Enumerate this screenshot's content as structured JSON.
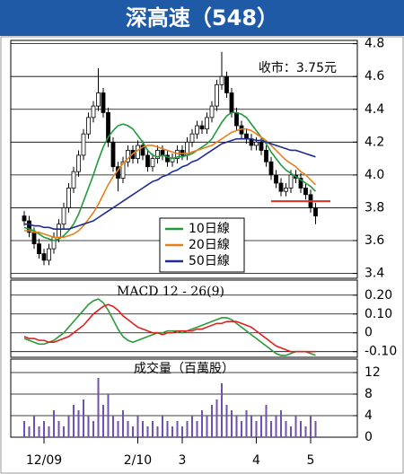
{
  "chart_data": [
    {
      "type": "candlestick",
      "title": "深高速（548）",
      "annotation": "收市：3.75元",
      "up_color": "#ffffff",
      "down_color": "#000000",
      "ohlc": [
        [
          3.75,
          3.78,
          3.69,
          3.72
        ],
        [
          3.72,
          3.75,
          3.62,
          3.65
        ],
        [
          3.65,
          3.68,
          3.55,
          3.58
        ],
        [
          3.58,
          3.61,
          3.49,
          3.52
        ],
        [
          3.52,
          3.55,
          3.45,
          3.48
        ],
        [
          3.48,
          3.58,
          3.45,
          3.55
        ],
        [
          3.55,
          3.65,
          3.52,
          3.62
        ],
        [
          3.62,
          3.73,
          3.59,
          3.7
        ],
        [
          3.7,
          3.83,
          3.67,
          3.8
        ],
        [
          3.8,
          3.95,
          3.77,
          3.92
        ],
        [
          3.92,
          4.05,
          3.89,
          4.02
        ],
        [
          4.02,
          4.15,
          3.99,
          4.12
        ],
        [
          4.12,
          4.28,
          4.09,
          4.25
        ],
        [
          4.25,
          4.38,
          4.22,
          4.35
        ],
        [
          4.35,
          4.45,
          4.32,
          4.42
        ],
        [
          4.42,
          4.65,
          4.39,
          4.5
        ],
        [
          4.5,
          4.53,
          4.35,
          4.38
        ],
        [
          4.38,
          4.41,
          4.17,
          4.2
        ],
        [
          4.2,
          4.23,
          4.02,
          4.05
        ],
        [
          4.05,
          4.08,
          3.9,
          3.98
        ],
        [
          3.98,
          4.11,
          3.95,
          4.08
        ],
        [
          4.08,
          4.18,
          4.05,
          4.15
        ],
        [
          4.15,
          4.18,
          4.07,
          4.1
        ],
        [
          4.1,
          4.21,
          4.07,
          4.18
        ],
        [
          4.18,
          4.21,
          4.09,
          4.12
        ],
        [
          4.12,
          4.15,
          4.02,
          4.05
        ],
        [
          4.05,
          4.13,
          4.02,
          4.1
        ],
        [
          4.1,
          4.18,
          4.07,
          4.15
        ],
        [
          4.15,
          4.18,
          4.09,
          4.12
        ],
        [
          4.12,
          4.15,
          4.05,
          4.08
        ],
        [
          4.08,
          4.13,
          4.05,
          4.1
        ],
        [
          4.1,
          4.18,
          4.07,
          4.15
        ],
        [
          4.15,
          4.18,
          4.09,
          4.12
        ],
        [
          4.12,
          4.23,
          4.09,
          4.2
        ],
        [
          4.2,
          4.28,
          4.17,
          4.25
        ],
        [
          4.25,
          4.33,
          4.22,
          4.3
        ],
        [
          4.3,
          4.33,
          4.25,
          4.28
        ],
        [
          4.28,
          4.38,
          4.25,
          4.35
        ],
        [
          4.35,
          4.45,
          4.32,
          4.42
        ],
        [
          4.42,
          4.58,
          4.39,
          4.55
        ],
        [
          4.55,
          4.75,
          4.52,
          4.6
        ],
        [
          4.6,
          4.63,
          4.47,
          4.5
        ],
        [
          4.5,
          4.53,
          4.35,
          4.38
        ],
        [
          4.38,
          4.41,
          4.27,
          4.3
        ],
        [
          4.3,
          4.33,
          4.22,
          4.25
        ],
        [
          4.25,
          4.28,
          4.19,
          4.22
        ],
        [
          4.22,
          4.25,
          4.15,
          4.18
        ],
        [
          4.18,
          4.23,
          4.15,
          4.2
        ],
        [
          4.2,
          4.23,
          4.12,
          4.15
        ],
        [
          4.15,
          4.18,
          4.05,
          4.08
        ],
        [
          4.08,
          4.11,
          3.97,
          4.0
        ],
        [
          4.0,
          4.03,
          3.92,
          3.95
        ],
        [
          3.95,
          3.98,
          3.87,
          3.9
        ],
        [
          3.9,
          3.95,
          3.87,
          3.92
        ],
        [
          3.92,
          4.03,
          3.89,
          4.0
        ],
        [
          4.0,
          4.03,
          3.95,
          3.98
        ],
        [
          3.98,
          4.01,
          3.89,
          3.92
        ],
        [
          3.92,
          3.95,
          3.85,
          3.88
        ],
        [
          3.88,
          3.91,
          3.77,
          3.8
        ],
        [
          3.8,
          3.83,
          3.7,
          3.75
        ]
      ],
      "series": [
        {
          "name": "10日線",
          "color": "#1f9a3c",
          "values": [
            3.68,
            3.67,
            3.66,
            3.64,
            3.62,
            3.61,
            3.6,
            3.61,
            3.63,
            3.66,
            3.7,
            3.76,
            3.84,
            3.92,
            4.0,
            4.09,
            4.17,
            4.23,
            4.27,
            4.3,
            4.31,
            4.3,
            4.28,
            4.24,
            4.2,
            4.15,
            4.12,
            4.11,
            4.12,
            4.11,
            4.1,
            4.11,
            4.11,
            4.12,
            4.13,
            4.15,
            4.17,
            4.19,
            4.22,
            4.27,
            4.32,
            4.36,
            4.38,
            4.38,
            4.37,
            4.35,
            4.31,
            4.27,
            4.23,
            4.19,
            4.14,
            4.1,
            4.06,
            4.03,
            4.01,
            3.99,
            3.97,
            3.95,
            3.93,
            3.9
          ]
        },
        {
          "name": "20日線",
          "color": "#e8801a",
          "values": [
            3.66,
            3.66,
            3.65,
            3.65,
            3.64,
            3.63,
            3.62,
            3.62,
            3.62,
            3.63,
            3.64,
            3.66,
            3.69,
            3.73,
            3.77,
            3.82,
            3.88,
            3.94,
            3.99,
            4.03,
            4.07,
            4.1,
            4.13,
            4.15,
            4.17,
            4.18,
            4.18,
            4.17,
            4.16,
            4.15,
            4.14,
            4.13,
            4.13,
            4.13,
            4.14,
            4.15,
            4.16,
            4.17,
            4.18,
            4.2,
            4.22,
            4.24,
            4.26,
            4.27,
            4.28,
            4.28,
            4.27,
            4.25,
            4.23,
            4.21,
            4.18,
            4.15,
            4.12,
            4.09,
            4.07,
            4.05,
            4.02,
            4.0,
            3.97,
            3.94
          ]
        },
        {
          "name": "50日線",
          "color": "#1c2e8c",
          "values": [
            3.7,
            3.7,
            3.69,
            3.69,
            3.68,
            3.68,
            3.67,
            3.67,
            3.67,
            3.67,
            3.68,
            3.69,
            3.7,
            3.71,
            3.72,
            3.74,
            3.76,
            3.78,
            3.8,
            3.82,
            3.84,
            3.86,
            3.88,
            3.9,
            3.92,
            3.94,
            3.96,
            3.97,
            3.99,
            4.0,
            4.02,
            4.03,
            4.05,
            4.06,
            4.08,
            4.09,
            4.11,
            4.13,
            4.15,
            4.17,
            4.19,
            4.2,
            4.21,
            4.22,
            4.22,
            4.22,
            4.22,
            4.21,
            4.21,
            4.2,
            4.19,
            4.18,
            4.17,
            4.16,
            4.15,
            4.15,
            4.14,
            4.13,
            4.12,
            4.11
          ]
        }
      ],
      "reference_line": {
        "value": 3.84,
        "x": [
          50,
          62
        ],
        "color": "#e03020"
      },
      "ylim": [
        3.37,
        4.82
      ],
      "yticks": [
        3.4,
        3.6,
        3.8,
        {
          "value": 4,
          "label": "4.0"
        },
        4.2,
        4.4,
        4.6,
        4.8
      ],
      "grid": true,
      "legend": "bottom-center"
    },
    {
      "type": "line",
      "title": "MACD 12 - 26(9)",
      "series": [
        {
          "color": "#2a9a3a",
          "values": [
            -0.03,
            -0.04,
            -0.05,
            -0.06,
            -0.06,
            -0.05,
            -0.04,
            -0.02,
            0.0,
            0.03,
            0.06,
            0.09,
            0.12,
            0.15,
            0.17,
            0.18,
            0.16,
            0.12,
            0.07,
            0.02,
            -0.02,
            -0.04,
            -0.05,
            -0.04,
            -0.03,
            -0.02,
            -0.01,
            0.0,
            0.0,
            0.01,
            0.01,
            0.01,
            0.0,
            0.01,
            0.02,
            0.03,
            0.04,
            0.05,
            0.06,
            0.07,
            0.08,
            0.08,
            0.07,
            0.05,
            0.03,
            0.01,
            -0.01,
            -0.03,
            -0.05,
            -0.07,
            -0.09,
            -0.11,
            -0.12,
            -0.12,
            -0.11,
            -0.1,
            -0.1,
            -0.1,
            -0.11,
            -0.12
          ]
        },
        {
          "color": "#e02020",
          "values": [
            -0.02,
            -0.03,
            -0.03,
            -0.04,
            -0.04,
            -0.05,
            -0.05,
            -0.04,
            -0.03,
            -0.02,
            0.0,
            0.02,
            0.04,
            0.07,
            0.1,
            0.12,
            0.14,
            0.15,
            0.14,
            0.12,
            0.09,
            0.07,
            0.05,
            0.03,
            0.02,
            0.01,
            0.0,
            0.0,
            -0.01,
            0.0,
            0.0,
            0.01,
            0.01,
            0.01,
            0.01,
            0.02,
            0.02,
            0.03,
            0.04,
            0.05,
            0.05,
            0.06,
            0.06,
            0.06,
            0.05,
            0.04,
            0.03,
            0.01,
            -0.01,
            -0.03,
            -0.05,
            -0.07,
            -0.08,
            -0.09,
            -0.1,
            -0.1,
            -0.1,
            -0.1,
            -0.1,
            -0.1
          ]
        }
      ],
      "ylim": [
        -0.13,
        0.28
      ],
      "yticks": [
        {
          "value": -0.1,
          "label": "-0.10"
        },
        0,
        {
          "value": 0.1,
          "label": "0.10"
        },
        {
          "value": 0.2,
          "label": "0.20"
        }
      ],
      "grid": true
    },
    {
      "type": "bar",
      "title": "成交量（百萬股）",
      "color": "#7050b0",
      "values": [
        3,
        2,
        4,
        2,
        3,
        2,
        5,
        3,
        2,
        4,
        6,
        5,
        7,
        4,
        3,
        11,
        6,
        8,
        4,
        3,
        5,
        3,
        2,
        4,
        3,
        2,
        3,
        2,
        4,
        3,
        2,
        3,
        2,
        3,
        4,
        3,
        5,
        4,
        6,
        7,
        10,
        6,
        5,
        4,
        3,
        5,
        4,
        3,
        4,
        6,
        3,
        4,
        5,
        3,
        2,
        4,
        3,
        2,
        4,
        3
      ],
      "ylim": [
        0,
        14.5
      ],
      "yticks": [
        0,
        4,
        8,
        12
      ],
      "grid": true,
      "xticks": [
        {
          "value": 4,
          "label": "12/09"
        },
        {
          "value": 23,
          "label": "2/10"
        },
        {
          "value": 32,
          "label": "3"
        },
        {
          "value": 47,
          "label": "4"
        },
        {
          "value": 58,
          "label": "5"
        }
      ]
    }
  ]
}
